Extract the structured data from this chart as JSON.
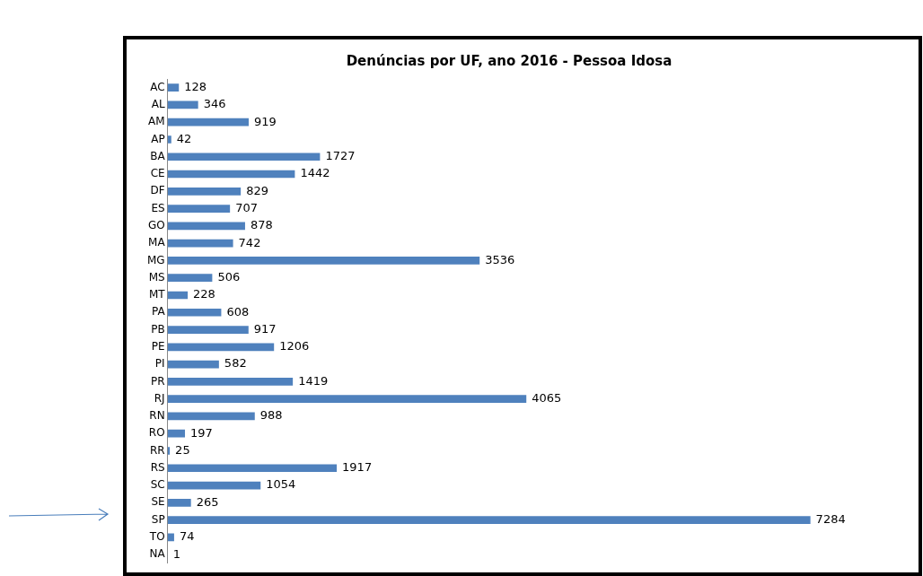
{
  "chart_data": {
    "type": "bar",
    "orientation": "horizontal",
    "title": "Denúncias por UF, ano 2016 - Pessoa Idosa",
    "categories": [
      "AC",
      "AL",
      "AM",
      "AP",
      "BA",
      "CE",
      "DF",
      "ES",
      "GO",
      "MA",
      "MG",
      "MS",
      "MT",
      "PA",
      "PB",
      "PE",
      "PI",
      "PR",
      "RJ",
      "RN",
      "RO",
      "RR",
      "RS",
      "SC",
      "SE",
      "SP",
      "TO",
      "NA"
    ],
    "values": [
      128,
      346,
      919,
      42,
      1727,
      1442,
      829,
      707,
      878,
      742,
      3536,
      506,
      228,
      608,
      917,
      1206,
      582,
      1419,
      4065,
      988,
      197,
      25,
      1917,
      1054,
      265,
      7284,
      74,
      1
    ],
    "color": "#4f81bd",
    "data_labels": true,
    "tick_labels": "y",
    "grid": false,
    "legend": false
  }
}
